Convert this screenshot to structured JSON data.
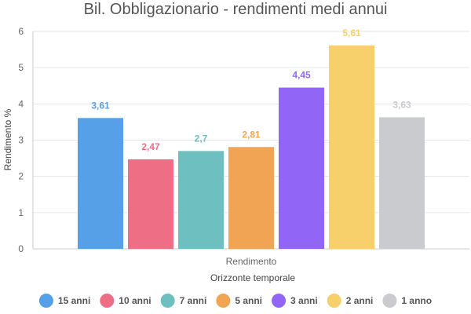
{
  "chart_data": {
    "type": "bar",
    "title": "Bil. Obbligazionario - rendimenti medi annui",
    "xlabel": "Orizzonte temporale",
    "ylabel": "Rendimento %",
    "categories": [
      "Rendimento"
    ],
    "ylim": [
      0,
      6
    ],
    "yticks": [
      "0",
      "1",
      "2",
      "3",
      "4",
      "5",
      "6"
    ],
    "grid": true,
    "legend_position": "bottom",
    "series": [
      {
        "name": "15 anni",
        "values": [
          3.61
        ],
        "label": "3,61",
        "color": "#55a0e6"
      },
      {
        "name": "10 anni",
        "values": [
          2.47
        ],
        "label": "2,47",
        "color": "#ee6e85"
      },
      {
        "name": "7 anni",
        "values": [
          2.7
        ],
        "label": "2,7",
        "color": "#6ebfbf"
      },
      {
        "name": "5 anni",
        "values": [
          2.81
        ],
        "label": "2,81",
        "color": "#f1a454"
      },
      {
        "name": "3 anni",
        "values": [
          4.45
        ],
        "label": "4,45",
        "color": "#9166f6"
      },
      {
        "name": "2 anni",
        "values": [
          5.61
        ],
        "label": "5,61",
        "color": "#f7d06b"
      },
      {
        "name": "1 anno",
        "values": [
          3.63
        ],
        "label": "3,63",
        "color": "#c9cbcf"
      }
    ]
  }
}
